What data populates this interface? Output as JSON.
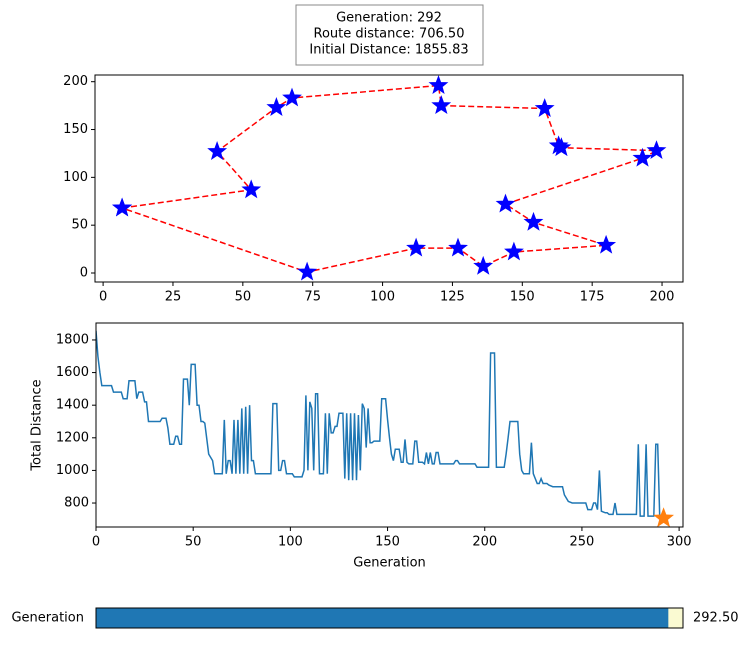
{
  "info_box": {
    "lines": [
      "Generation: 292",
      "Route distance:   706.50",
      "Initial Distance:  1855.83"
    ]
  },
  "chart_data": [
    {
      "type": "line",
      "line_style": "dashed",
      "color": "#ff0000",
      "marker": "star",
      "marker_color": "#0000ff",
      "x": [
        6.8,
        53,
        40.8,
        62,
        67.6,
        120,
        121,
        158,
        163,
        164,
        198,
        193,
        144,
        154,
        180,
        147,
        136,
        127,
        112,
        73,
        6.8
      ],
      "values": [
        68,
        87,
        127,
        173,
        183,
        196,
        175,
        172,
        133,
        131,
        128,
        120,
        72,
        53,
        29,
        22,
        7,
        26,
        26,
        1,
        68
      ],
      "xlim": [
        -2.9,
        207.5
      ],
      "ylim": [
        -9.4,
        207
      ],
      "xticks": [
        0,
        25,
        50,
        75,
        100,
        125,
        150,
        175,
        200
      ],
      "yticks": [
        0,
        50,
        100,
        150,
        200
      ]
    },
    {
      "type": "line",
      "color": "#1f77b4",
      "x_label": "Generation",
      "y_label": "Total Distance",
      "x": [
        0,
        1,
        2,
        3,
        5,
        8,
        9,
        13,
        14,
        16,
        17,
        20,
        21,
        22,
        24,
        25,
        26,
        27,
        33,
        34,
        36,
        37,
        38,
        40,
        41,
        42,
        43,
        44,
        45,
        47,
        48,
        49,
        51,
        52,
        53,
        54,
        55,
        56,
        58,
        60,
        61,
        65,
        66,
        67,
        68,
        69,
        70,
        71,
        72,
        73,
        74,
        75,
        76,
        77,
        78,
        79,
        80,
        81,
        82,
        90,
        91,
        93,
        94,
        95,
        96,
        97,
        98,
        101,
        102,
        106,
        107,
        108,
        109,
        110,
        111,
        112,
        113,
        114,
        115,
        117,
        118,
        119,
        120,
        121,
        122,
        123,
        124,
        125,
        127,
        128,
        129,
        130,
        131,
        132,
        133,
        134,
        135,
        136,
        137,
        138,
        139,
        140,
        141,
        142,
        143,
        146,
        147,
        149,
        150,
        151,
        152,
        153,
        154,
        156,
        157,
        158,
        159,
        160,
        161,
        163,
        164,
        165,
        166,
        168,
        169,
        170,
        171,
        172,
        173,
        174,
        175,
        176,
        177,
        184,
        185,
        186,
        187,
        195,
        196,
        202,
        203,
        205,
        206,
        210,
        211,
        212,
        213,
        217,
        218,
        219,
        220,
        223,
        224,
        225,
        227,
        228,
        229,
        230,
        232,
        233,
        235,
        240,
        241,
        243,
        245,
        252,
        253,
        255,
        256,
        257,
        258,
        259,
        260,
        262,
        263,
        264,
        266,
        267,
        268,
        278,
        279,
        280,
        282,
        283,
        284,
        287,
        288,
        289,
        290,
        292
      ],
      "values": [
        1856,
        1700,
        1600,
        1520,
        1520,
        1520,
        1480,
        1480,
        1440,
        1440,
        1550,
        1550,
        1440,
        1480,
        1480,
        1420,
        1420,
        1300,
        1300,
        1320,
        1320,
        1260,
        1160,
        1160,
        1210,
        1210,
        1160,
        1160,
        1560,
        1560,
        1400,
        1650,
        1650,
        1400,
        1400,
        1300,
        1300,
        1290,
        1100,
        1060,
        980,
        980,
        1310,
        980,
        1060,
        1060,
        980,
        1310,
        980,
        1310,
        980,
        1380,
        980,
        1390,
        980,
        1400,
        1060,
        1060,
        980,
        980,
        1410,
        1410,
        1000,
        1000,
        1060,
        1060,
        980,
        980,
        960,
        960,
        1000,
        1460,
        1000,
        1420,
        1380,
        1000,
        1470,
        1470,
        980,
        980,
        1350,
        980,
        1350,
        1230,
        1230,
        1270,
        1270,
        1350,
        1350,
        950,
        1350,
        940,
        1350,
        940,
        1350,
        940,
        1340,
        1000,
        1410,
        1380,
        1140,
        1380,
        1170,
        1170,
        1180,
        1180,
        1440,
        1440,
        1310,
        1200,
        1100,
        1060,
        1130,
        1130,
        1050,
        1050,
        1190,
        1050,
        1040,
        1040,
        1180,
        1180,
        1050,
        1050,
        1040,
        1110,
        1040,
        1110,
        1040,
        1040,
        1110,
        1110,
        1040,
        1040,
        1060,
        1060,
        1040,
        1040,
        1020,
        1020,
        1720,
        1720,
        1020,
        1020,
        1100,
        1200,
        1300,
        1300,
        1100,
        1000,
        980,
        980,
        1170,
        980,
        920,
        920,
        950,
        920,
        920,
        910,
        900,
        900,
        850,
        810,
        800,
        800,
        760,
        760,
        800,
        800,
        760,
        1000,
        750,
        740,
        740,
        730,
        730,
        800,
        730,
        730,
        1160,
        720,
        720,
        1160,
        720,
        720,
        1160,
        1160,
        720,
        706.5
      ],
      "highlight": {
        "x": 292,
        "value": 706.5,
        "color": "#ff7f0e"
      },
      "xlim": [
        0,
        302
      ],
      "ylim": [
        653,
        1904
      ],
      "xticks": [
        0,
        50,
        100,
        150,
        200,
        250,
        300
      ],
      "yticks": [
        800,
        1000,
        1200,
        1400,
        1600,
        1800
      ]
    }
  ],
  "slider": {
    "label": "Generation",
    "value": 292.5,
    "value_label": "292.50",
    "min": 0,
    "max": 300,
    "color": "#1f77b4"
  }
}
